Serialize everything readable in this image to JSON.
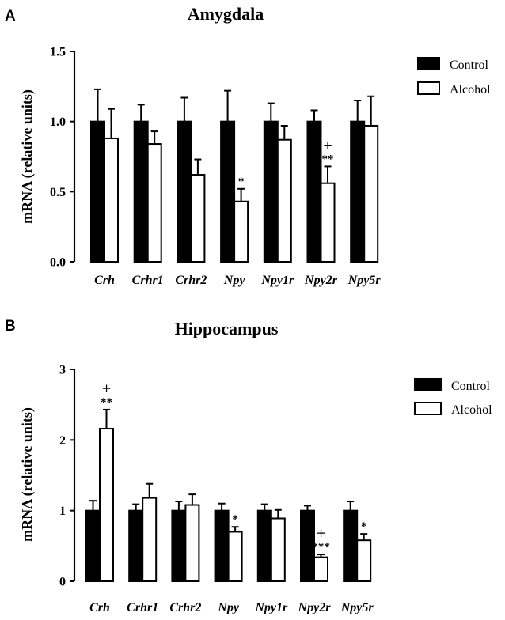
{
  "chart_data": [
    {
      "type": "bar",
      "panel_label": "A",
      "title": "Amygdala",
      "ylabel": "mRNA (relative units)",
      "xlabel": "",
      "ylim": [
        0,
        1.5
      ],
      "yticks": [
        "0.0",
        "0.5",
        "1.0",
        "1.5"
      ],
      "categories": [
        "Crh",
        "Crhr1",
        "Crhr2",
        "Npy",
        "Npy1r",
        "Npy2r",
        "Npy5r"
      ],
      "series": [
        {
          "name": "Control",
          "color": "#000000",
          "values": [
            1.0,
            1.0,
            1.0,
            1.0,
            1.0,
            1.0,
            1.0
          ],
          "errors": [
            0.23,
            0.12,
            0.17,
            0.22,
            0.13,
            0.08,
            0.15
          ]
        },
        {
          "name": "Alcohol",
          "color": "#ffffff",
          "values": [
            0.88,
            0.84,
            0.62,
            0.43,
            0.87,
            0.56,
            0.97
          ],
          "errors": [
            0.21,
            0.09,
            0.11,
            0.09,
            0.1,
            0.12,
            0.21
          ]
        }
      ],
      "annotations": [
        {
          "category": "Npy",
          "series": "Alcohol",
          "text": "*",
          "plus": ""
        },
        {
          "category": "Npy2r",
          "series": "Alcohol",
          "text": "**",
          "plus": "+"
        }
      ],
      "legend": "top-right",
      "grid": false
    },
    {
      "type": "bar",
      "panel_label": "B",
      "title": "Hippocampus",
      "ylabel": "mRNA (relative units)",
      "xlabel": "",
      "ylim": [
        0,
        3
      ],
      "yticks": [
        "0",
        "1",
        "2",
        "3"
      ],
      "categories": [
        "Crh",
        "Crhr1",
        "Crhr2",
        "Npy",
        "Npy1r",
        "Npy2r",
        "Npy5r"
      ],
      "series": [
        {
          "name": "Control",
          "color": "#000000",
          "values": [
            1.0,
            1.0,
            1.0,
            1.0,
            1.0,
            1.0,
            1.0
          ],
          "errors": [
            0.14,
            0.09,
            0.13,
            0.1,
            0.09,
            0.07,
            0.13
          ]
        },
        {
          "name": "Alcohol",
          "color": "#ffffff",
          "values": [
            2.16,
            1.18,
            1.08,
            0.7,
            0.89,
            0.34,
            0.58
          ],
          "errors": [
            0.27,
            0.2,
            0.15,
            0.07,
            0.12,
            0.04,
            0.09
          ]
        }
      ],
      "annotations": [
        {
          "category": "Crh",
          "series": "Alcohol",
          "text": "**",
          "plus": "+"
        },
        {
          "category": "Npy",
          "series": "Alcohol",
          "text": "*",
          "plus": ""
        },
        {
          "category": "Npy2r",
          "series": "Alcohol",
          "text": "***",
          "plus": "+"
        },
        {
          "category": "Npy5r",
          "series": "Alcohol",
          "text": "*",
          "plus": ""
        }
      ],
      "legend": "top-right",
      "grid": false
    }
  ]
}
